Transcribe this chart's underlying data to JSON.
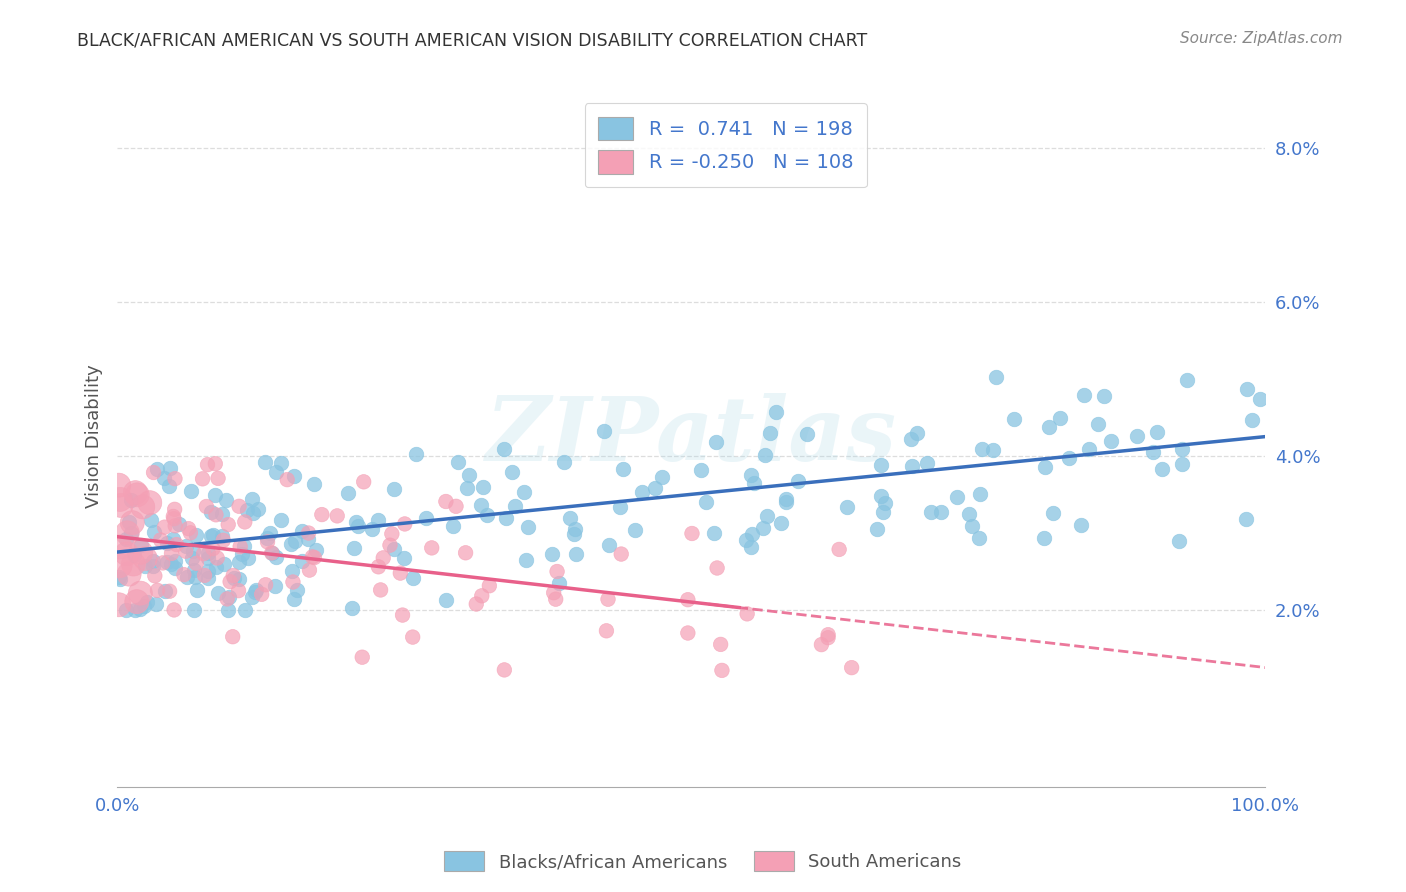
{
  "title": "BLACK/AFRICAN AMERICAN VS SOUTH AMERICAN VISION DISABILITY CORRELATION CHART",
  "source": "Source: ZipAtlas.com",
  "ylabel": "Vision Disability",
  "xlim": [
    0,
    100
  ],
  "ylim": [
    -0.3,
    8.8
  ],
  "yticks": [
    2.0,
    4.0,
    6.0,
    8.0
  ],
  "background_color": "#ffffff",
  "watermark": "ZIPatlas",
  "blue_color": "#89c4e1",
  "pink_color": "#f4a0b5",
  "blue_line_color": "#3a6fbc",
  "pink_line_color": "#e8608a",
  "legend_blue_label": "R =  0.741   N = 198",
  "legend_pink_label": "R = -0.250   N = 108",
  "legend1_label": "Blacks/African Americans",
  "legend2_label": "South Americans",
  "blue_slope": 0.015,
  "blue_intercept": 2.75,
  "pink_slope": -0.017,
  "pink_intercept": 2.95,
  "tick_color": "#4477cc",
  "grid_color": "#dddddd",
  "text_color": "#555555"
}
